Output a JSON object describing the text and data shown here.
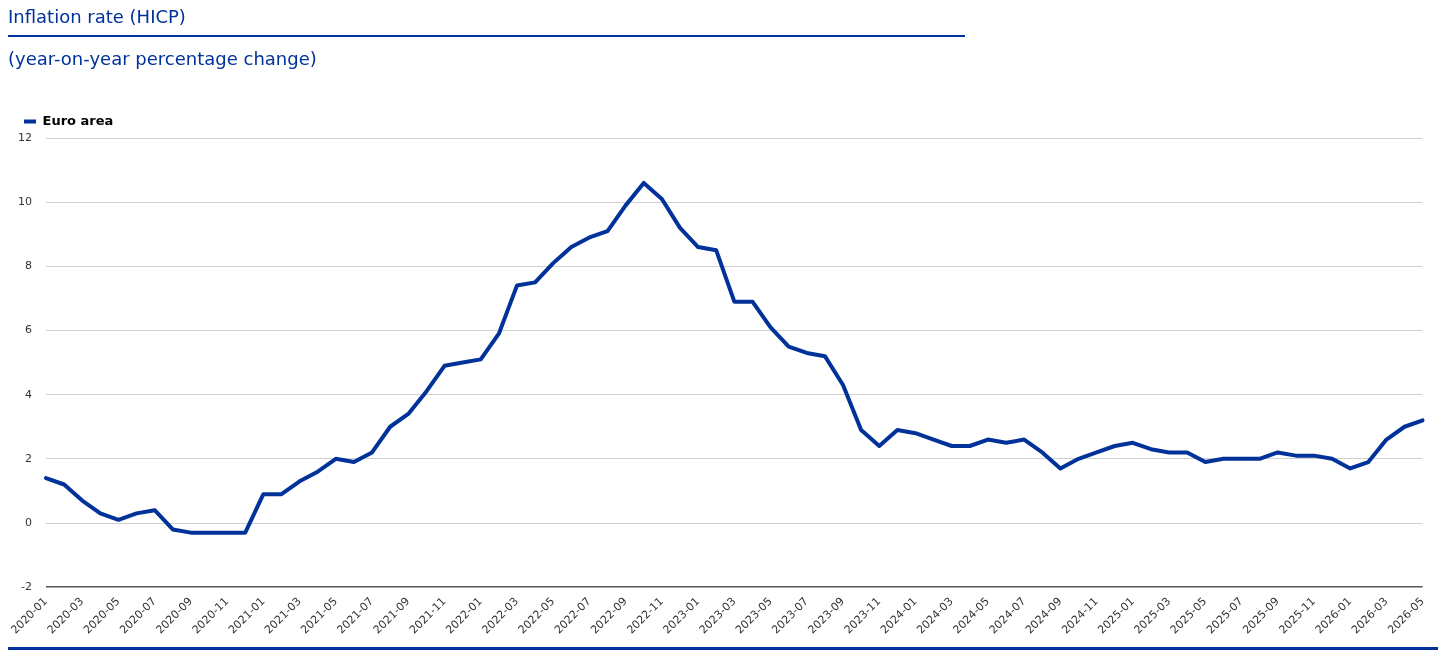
{
  "chart_data": {
    "type": "line",
    "title": "Inflation rate (HICP)",
    "subtitle": "(year-on-year percentage change)",
    "categories": [
      "2020-01",
      null,
      "2020-03",
      null,
      "2020-05",
      null,
      "2020-07",
      null,
      "2020-09",
      null,
      "2020-11",
      null,
      "2021-01",
      null,
      "2021-03",
      null,
      "2021-05",
      null,
      "2021-07",
      null,
      "2021-09",
      null,
      "2021-11",
      null,
      "2022-01",
      null,
      "2022-03",
      null,
      "2022-05",
      null,
      "2022-07",
      null,
      "2022-09",
      null,
      "2022-11",
      null,
      "2023-01",
      null,
      "2023-03",
      null,
      "2023-05",
      null,
      "2023-07",
      null,
      "2023-09",
      null,
      "2023-11",
      null,
      "2024-01",
      null,
      "2024-03",
      null,
      "2024-05",
      null,
      "2024-07",
      null,
      "2024-09",
      null,
      "2024-11",
      null,
      "2025-01",
      null,
      "2025-03",
      null,
      "2025-05",
      null,
      "2025-07",
      null,
      "2025-09",
      null,
      "2025-11",
      null,
      "2026-01",
      null,
      "2026-03",
      null,
      "2026-05"
    ],
    "series": [
      {
        "name": "Euro area",
        "color": "#003299",
        "values": [
          1.4,
          1.2,
          0.7,
          0.3,
          0.1,
          0.3,
          0.4,
          -0.2,
          -0.3,
          -0.3,
          -0.3,
          -0.3,
          0.9,
          0.9,
          1.3,
          1.6,
          2.0,
          1.9,
          2.2,
          3.0,
          3.4,
          4.1,
          4.9,
          5.0,
          5.1,
          5.9,
          7.4,
          7.5,
          8.1,
          8.6,
          8.9,
          9.1,
          9.9,
          10.6,
          10.1,
          9.2,
          8.6,
          8.5,
          6.9,
          6.9,
          6.1,
          5.5,
          5.3,
          5.2,
          4.3,
          2.9,
          2.4,
          2.9,
          2.8,
          2.6,
          2.4,
          2.4,
          2.6,
          2.5,
          2.6,
          2.2,
          1.7,
          2.0,
          2.2,
          2.4,
          2.5,
          2.3,
          2.2,
          2.2,
          1.9,
          2.0,
          2.0,
          2.0,
          2.2,
          2.1,
          2.1,
          2.0,
          1.7,
          1.9,
          2.6,
          3.0,
          3.2
        ]
      }
    ],
    "ylim": [
      -2,
      12
    ],
    "yticks": [
      -2,
      0,
      2,
      4,
      6,
      8,
      10,
      12
    ],
    "grid": "y",
    "legend": "top left",
    "marker": "none",
    "line_style": "solid"
  }
}
